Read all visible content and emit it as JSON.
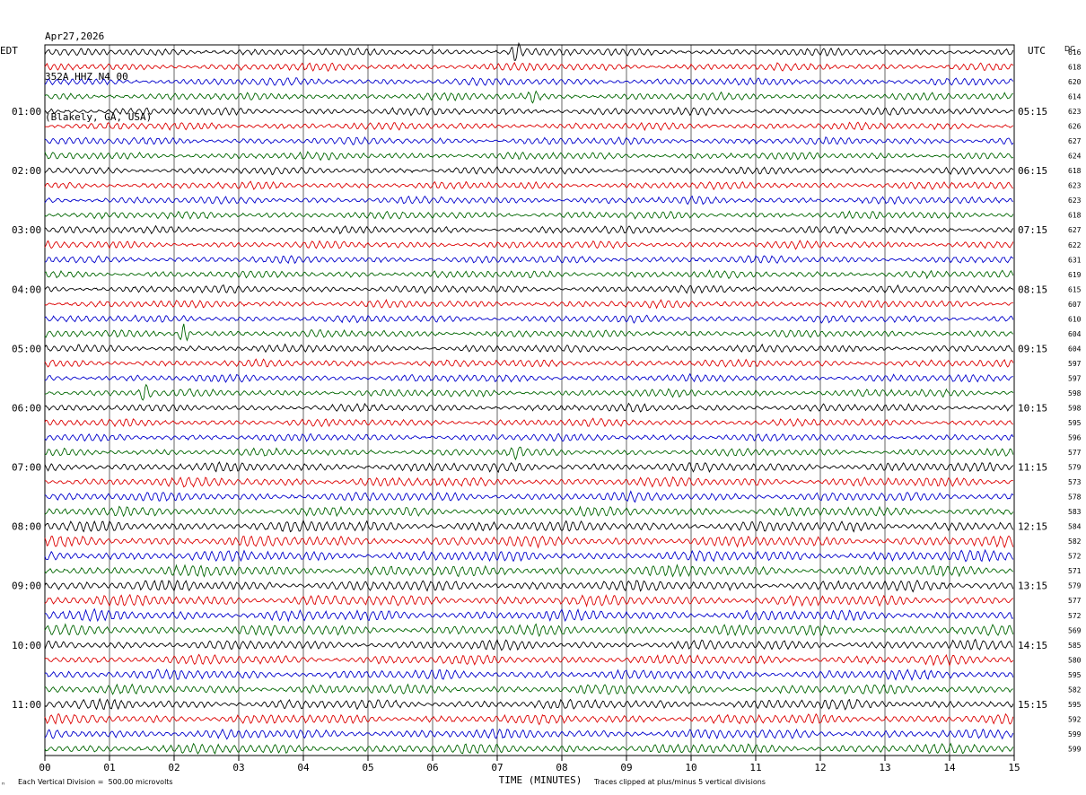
{
  "header": {
    "date": "Apr27,2026",
    "station": "352A HHZ N4 00",
    "location": "(Blakely, GA, USA)"
  },
  "left_tz": "EDT",
  "right_tz": "UTC",
  "dc_label": "DC",
  "footer": {
    "scale_note": "Each Vertical Division =  500.00 microvolts",
    "clip_note": "Traces clipped at plus/minus 5 vertical divisions",
    "corner_mark": "ⁿ"
  },
  "colors": [
    "#000000",
    "#dd0000",
    "#0000cc",
    "#006600"
  ],
  "chart_data": {
    "type": "line",
    "title": "",
    "xlabel": "TIME (MINUTES)",
    "xlim": [
      0,
      15
    ],
    "x_ticks": [
      "00",
      "01",
      "02",
      "03",
      "04",
      "05",
      "06",
      "07",
      "08",
      "09",
      "10",
      "11",
      "12",
      "13",
      "14",
      "15"
    ],
    "rows": 48,
    "row_minutes": 15,
    "left_hour_labels": [
      "01:00",
      "02:00",
      "03:00",
      "04:00",
      "05:00",
      "06:00",
      "07:00",
      "08:00",
      "09:00",
      "10:00",
      "11:00"
    ],
    "right_hour_labels": [
      "05:15",
      "06:15",
      "07:15",
      "08:15",
      "09:15",
      "10:15",
      "11:15",
      "12:15",
      "13:15",
      "14:15",
      "15:15"
    ],
    "dc_offsets": [
      616,
      618,
      620,
      614,
      623,
      626,
      627,
      624,
      618,
      623,
      623,
      618,
      627,
      622,
      631,
      619,
      615,
      607,
      610,
      604,
      604,
      597,
      597,
      598,
      598,
      595,
      596,
      577,
      579,
      573,
      578,
      583,
      584,
      582,
      572,
      571,
      579,
      577,
      572,
      569,
      585,
      580,
      595,
      582,
      595,
      592,
      599,
      599
    ],
    "events": [
      {
        "row": 0,
        "minute": 7.3,
        "amplitude": 1.0
      },
      {
        "row": 3,
        "minute": 7.55,
        "amplitude": 0.5
      },
      {
        "row": 19,
        "minute": 2.15,
        "amplitude": 1.0
      },
      {
        "row": 23,
        "minute": 1.55,
        "amplitude": 0.9
      },
      {
        "row": 27,
        "minute": 7.3,
        "amplitude": 0.5
      }
    ]
  }
}
